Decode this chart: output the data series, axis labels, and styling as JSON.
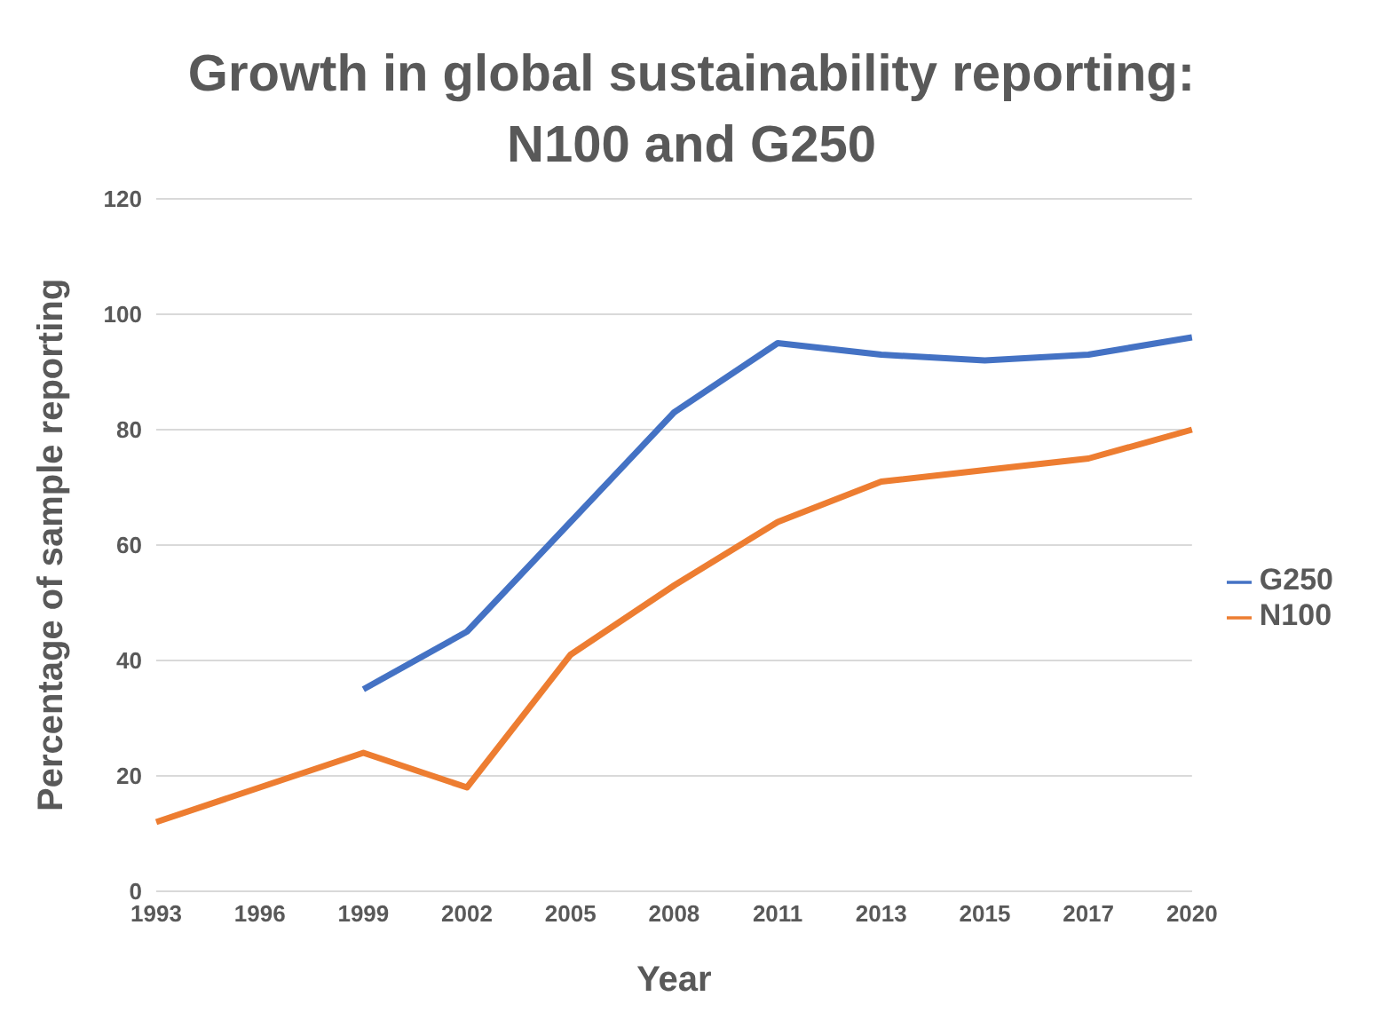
{
  "chart_data": {
    "type": "line",
    "title": "Growth in global sustainability reporting:\nN100 and G250",
    "xlabel": "Year",
    "ylabel": "Percentage of sample reporting",
    "categories": [
      "1993",
      "1996",
      "1999",
      "2002",
      "2005",
      "2008",
      "2011",
      "2013",
      "2015",
      "2017",
      "2020"
    ],
    "series": [
      {
        "name": "G250",
        "color": "#4472c4",
        "values": [
          null,
          null,
          35,
          45,
          64,
          83,
          95,
          93,
          92,
          93,
          96
        ]
      },
      {
        "name": "N100",
        "color": "#ed7d31",
        "values": [
          12,
          18,
          24,
          18,
          41,
          53,
          64,
          71,
          73,
          75,
          80
        ]
      }
    ],
    "ylim": [
      0,
      120
    ],
    "yticks": [
      0,
      20,
      40,
      60,
      80,
      100,
      120
    ],
    "grid": "y",
    "legend": "right",
    "marker": "none"
  }
}
